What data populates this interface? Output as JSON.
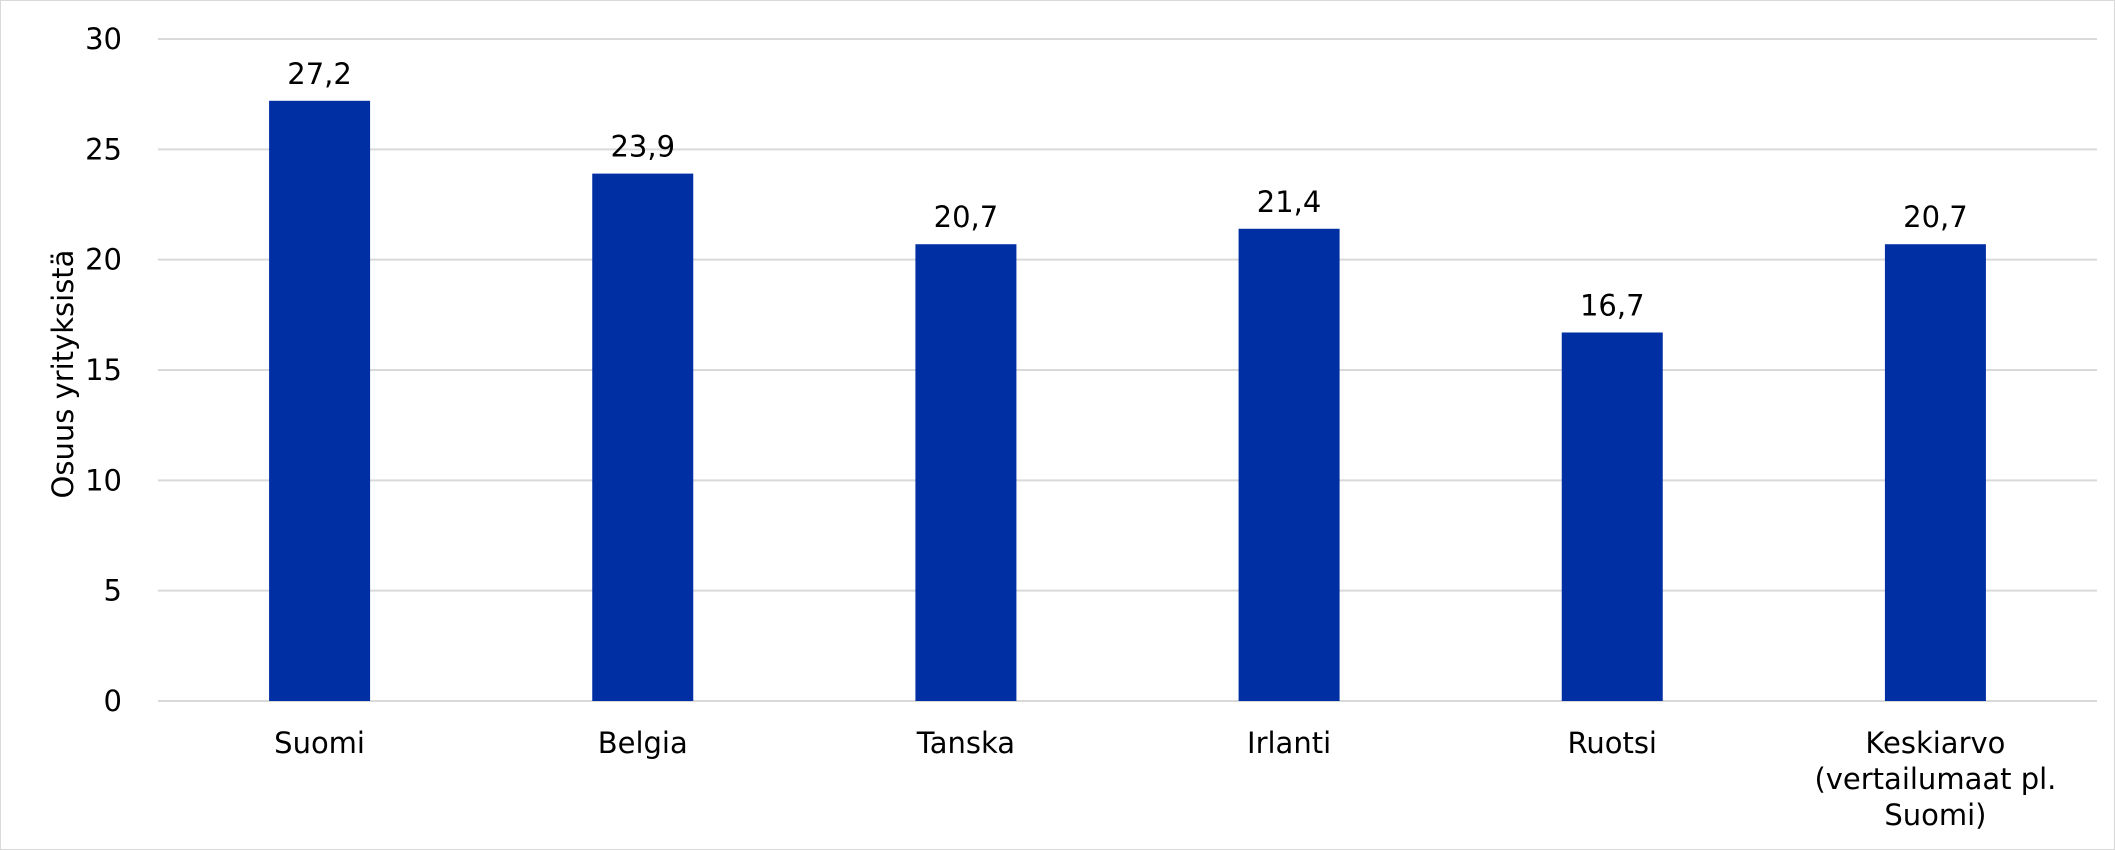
{
  "chart_data": {
    "type": "bar",
    "title": "",
    "xlabel": "",
    "ylabel": "Osuus yrityksistä",
    "ylim": [
      0,
      30
    ],
    "yticks": [
      0,
      5,
      10,
      15,
      20,
      25,
      30
    ],
    "grid": true,
    "legend": "none",
    "categories": [
      [
        "Suomi"
      ],
      [
        "Belgia"
      ],
      [
        "Tanska"
      ],
      [
        "Irlanti"
      ],
      [
        "Ruotsi"
      ],
      [
        "Keskiarvo",
        "(vertailumaat pl.",
        "Suomi)"
      ]
    ],
    "values": [
      27.2,
      23.9,
      20.7,
      21.4,
      16.7,
      20.7
    ],
    "value_labels": [
      "27,2",
      "23,9",
      "20,7",
      "21,4",
      "16,7",
      "20,7"
    ],
    "bar_color": "#002ea3",
    "grid_color": "#d9d9d9"
  }
}
